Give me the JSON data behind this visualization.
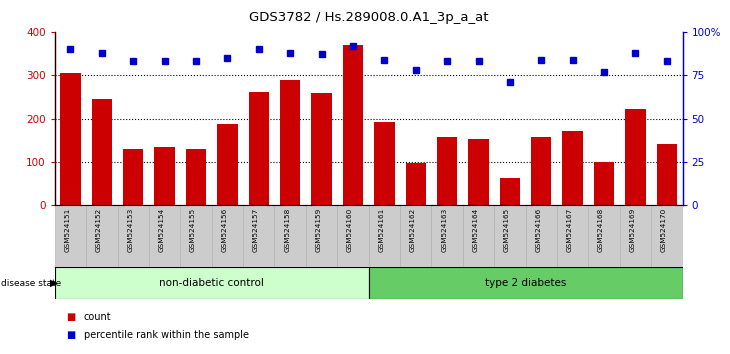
{
  "title": "GDS3782 / Hs.289008.0.A1_3p_a_at",
  "samples": [
    "GSM524151",
    "GSM524152",
    "GSM524153",
    "GSM524154",
    "GSM524155",
    "GSM524156",
    "GSM524157",
    "GSM524158",
    "GSM524159",
    "GSM524160",
    "GSM524161",
    "GSM524162",
    "GSM524163",
    "GSM524164",
    "GSM524165",
    "GSM524166",
    "GSM524167",
    "GSM524168",
    "GSM524169",
    "GSM524170"
  ],
  "counts": [
    305,
    245,
    130,
    135,
    130,
    187,
    262,
    290,
    260,
    370,
    192,
    97,
    158,
    153,
    63,
    158,
    172,
    100,
    222,
    142
  ],
  "percentiles": [
    90,
    88,
    83,
    83,
    83,
    85,
    90,
    88,
    87,
    92,
    84,
    78,
    83,
    83,
    71,
    84,
    84,
    77,
    88,
    83
  ],
  "non_diabetic_count": 10,
  "type2_count": 10,
  "bar_color": "#cc0000",
  "dot_color": "#0000cc",
  "bg_color": "#ffffff",
  "tick_area_color": "#cccccc",
  "non_diabetic_color": "#ccffcc",
  "type2_color": "#66cc66",
  "ylim_left": [
    0,
    400
  ],
  "ylim_right": [
    0,
    100
  ],
  "yticks_left": [
    0,
    100,
    200,
    300,
    400
  ],
  "yticks_right": [
    0,
    25,
    50,
    75,
    100
  ],
  "ytick_labels_right": [
    "0",
    "25",
    "50",
    "75",
    "100%"
  ],
  "gridlines_at": [
    100,
    200,
    300
  ]
}
